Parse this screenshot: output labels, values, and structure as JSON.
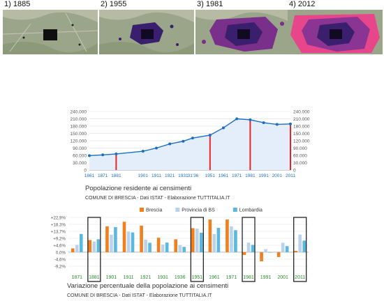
{
  "maps": [
    {
      "label": "1) 1885"
    },
    {
      "label": "2) 1955"
    },
    {
      "label": "3) 1981"
    },
    {
      "label": "4) 2012"
    }
  ],
  "chart_data": [
    {
      "type": "line",
      "title": "Popolazione residente ai censimenti",
      "subtitle": "COMUNE DI BRESCIA - Dati ISTAT - Elaborazione TUTTITALIA.IT",
      "x": [
        "1861",
        "1871",
        "1881",
        "1901",
        "1911",
        "1921",
        "1931",
        "'31'36",
        "1951",
        "1961",
        "1971",
        "1981",
        "1991",
        "2001",
        "2011"
      ],
      "x_pos": [
        1861,
        1871,
        1881,
        1901,
        1911,
        1921,
        1931,
        1938,
        1951,
        1961,
        1971,
        1981,
        1991,
        2001,
        2011
      ],
      "y_ticks": [
        "240.000",
        "210.000",
        "180.000",
        "150.000",
        "120.000",
        "90.000",
        "60.000",
        "30.000",
        "0"
      ],
      "y_ticks_right": [
        "240.000",
        "210.000",
        "180.000",
        "150.000",
        "120.000",
        "90.000",
        "60.000",
        "30.000",
        "0"
      ],
      "ylim": [
        0,
        240000
      ],
      "series": [
        {
          "values": [
            59000,
            62000,
            66000,
            77000,
            90000,
            107000,
            118000,
            131000,
            143000,
            173000,
            210000,
            206000,
            194000,
            187000,
            189000
          ]
        }
      ],
      "highlight_years": [
        1881,
        1951,
        1981,
        2011
      ],
      "grid": true,
      "color": "#1a6fc4",
      "highlight_color": "#e8242a"
    },
    {
      "type": "bar",
      "title": "Variazione percentuale della popolazione ai censimenti",
      "subtitle": "COMUNE DI BRESCIA - Dati ISTAT - Elaborazione TUTTITALIA.IT",
      "categories": [
        "1871",
        "1881",
        "1901",
        "1911",
        "1921",
        "1931",
        "1936",
        "1951",
        "1961",
        "1971",
        "1981",
        "1991",
        "2001",
        "2011"
      ],
      "y_ticks": [
        "+22,9%",
        "+18,3%",
        "+13,7%",
        "+9,2%",
        "+4,6%",
        "0,0%",
        "-4,6%",
        "-9,2%"
      ],
      "ylim": [
        -9.2,
        22.9
      ],
      "series": [
        {
          "name": "Brescia",
          "color": "#f07f1e",
          "values": [
            2.5,
            8.0,
            17.0,
            20.0,
            17.5,
            9.5,
            8.5,
            15.8,
            21.5,
            21.5,
            -1.8,
            -6.0,
            -3.2,
            0.9
          ]
        },
        {
          "name": "Provincia di BS",
          "color": "#b9d3ef",
          "values": [
            4.8,
            7.0,
            11.5,
            13.5,
            8.3,
            5.0,
            4.7,
            15.5,
            12.0,
            17.0,
            6.3,
            2.0,
            6.2,
            11.6
          ]
        },
        {
          "name": "Lombardia",
          "color": "#5bb8e0",
          "values": [
            12.0,
            8.5,
            16.5,
            13.0,
            6.2,
            6.3,
            3.5,
            12.8,
            16.0,
            14.5,
            4.8,
            0.0,
            4.0,
            7.6
          ]
        }
      ],
      "legend": "top",
      "highlight_categories": [
        "1881",
        "1951",
        "1981",
        "2011"
      ],
      "tick_color": "#2c8a2c"
    }
  ]
}
